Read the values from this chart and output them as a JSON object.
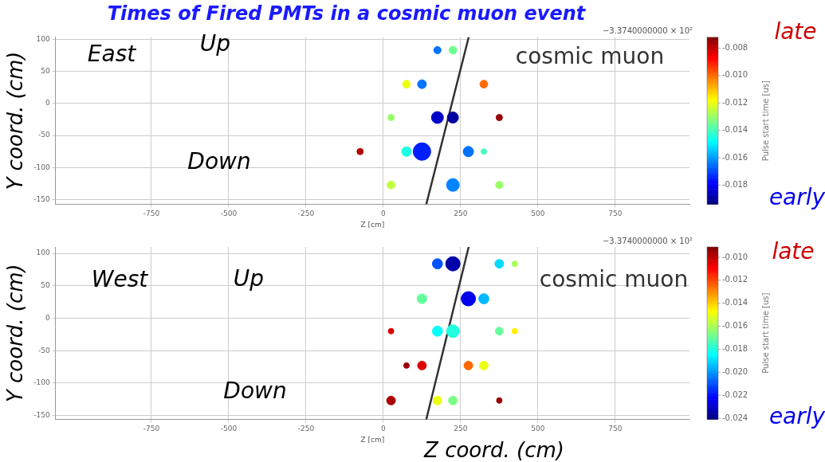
{
  "chart_data": [
    {
      "type": "bubble",
      "title": "Times of Fired PMTs in a cosmic muon event",
      "xlabel": "Z [cm]",
      "ylabel": "Y coord. (cm)",
      "clabel": "Pulse start time [us]",
      "xlim": [
        -1060,
        990
      ],
      "xticks": [
        -750,
        -500,
        -250,
        0,
        250,
        500,
        750
      ],
      "ylim": [
        -157,
        103
      ],
      "yticks": [
        -150,
        -100,
        -50,
        0,
        50,
        100
      ],
      "clim": [
        -0.0194,
        -0.0072
      ],
      "cticks": [
        {
          "value": -0.008,
          "label": "-0.008"
        },
        {
          "value": -0.01,
          "label": "-0.010"
        },
        {
          "value": -0.012,
          "label": "-0.012"
        },
        {
          "value": -0.014,
          "label": "-0.014"
        },
        {
          "value": -0.016,
          "label": "-0.016"
        },
        {
          "value": -0.018,
          "label": "-0.018"
        }
      ],
      "grid": true,
      "legend": false,
      "series": [
        {
          "type": "bubble",
          "x": [
            175,
            225,
            75,
            125,
            325,
            25,
            175,
            225,
            375,
            -75,
            75,
            125,
            275,
            325,
            25,
            225,
            375
          ],
          "values": [
            83,
            83,
            30,
            30,
            30,
            -22,
            -22,
            -22,
            -22,
            -75,
            -75,
            -75,
            -75,
            -75,
            -127,
            -127,
            -127
          ],
          "sizes": [
            0.17,
            0.2,
            0.2,
            0.25,
            0.2,
            0.13,
            0.46,
            0.4,
            0.13,
            0.13,
            0.3,
            1,
            0.35,
            0.1,
            0.2,
            0.53,
            0.17
          ],
          "cvalues": [
            -0.0165,
            -0.0135,
            -0.012,
            -0.0165,
            -0.01,
            -0.013,
            -0.0185,
            -0.019,
            -0.0075,
            -0.0078,
            -0.0145,
            -0.0175,
            -0.0165,
            -0.014,
            -0.0125,
            -0.0163,
            -0.013
          ],
          "colors": [
            "#0073ff",
            "#6fff90",
            "#ecff13",
            "#0073ff",
            "#ff6b00",
            "#98ff67",
            "#0000cb",
            "#0000a1",
            "#980000",
            "#b20000",
            "#1bffe4",
            "#001fff",
            "#0073ff",
            "#45ffba",
            "#c2ff3d",
            "#0084ff",
            "#98ff67"
          ]
        },
        {
          "type": "line",
          "name": "cosmic muon",
          "color": "#333333",
          "x": [
            139,
            276
          ],
          "values": [
            -157,
            103
          ]
        }
      ],
      "annotations": [
        "East",
        "Up",
        "Down",
        "late",
        "early",
        "−3.3740000000 × 10²"
      ]
    },
    {
      "type": "bubble",
      "xlabel": "Z [cm]",
      "ylabel": "Y coord. (cm)",
      "clabel": "Pulse start time [us]",
      "xlim": [
        -1060,
        990
      ],
      "xticks": [
        -750,
        -500,
        -250,
        0,
        250,
        500,
        750
      ],
      "ylim": [
        -156,
        110
      ],
      "yticks": [
        -150,
        -100,
        -50,
        0,
        50,
        100
      ],
      "clim": [
        -0.0241,
        -0.0091
      ],
      "cticks": [
        {
          "value": -0.01,
          "label": "-0.010"
        },
        {
          "value": -0.012,
          "label": "-0.012"
        },
        {
          "value": -0.014,
          "label": "-0.014"
        },
        {
          "value": -0.016,
          "label": "-0.016"
        },
        {
          "value": -0.018,
          "label": "-0.018"
        },
        {
          "value": -0.02,
          "label": "-0.020"
        },
        {
          "value": -0.022,
          "label": "-0.022"
        },
        {
          "value": -0.024,
          "label": "-0.024"
        }
      ],
      "grid": true,
      "legend": false,
      "series": [
        {
          "type": "bubble",
          "x": [
            175,
            225,
            375,
            425,
            125,
            275,
            325,
            25,
            175,
            225,
            375,
            425,
            75,
            125,
            275,
            325,
            25,
            175,
            225,
            375
          ],
          "values": [
            84,
            84,
            84,
            84,
            30,
            30,
            30,
            -20,
            -20,
            -20,
            -20,
            -20,
            -73,
            -73,
            -73,
            -73,
            -127,
            -127,
            -127,
            -127
          ],
          "sizes": [
            0.5,
            1,
            0.37,
            0.15,
            0.45,
            1,
            0.5,
            0.15,
            0.5,
            0.8,
            0.3,
            0.15,
            0.15,
            0.37,
            0.37,
            0.37,
            0.37,
            0.37,
            0.37,
            0.15
          ],
          "cvalues": [
            -0.021,
            -0.0235,
            -0.019,
            -0.016,
            -0.017,
            -0.0225,
            -0.0195,
            -0.0105,
            -0.0185,
            -0.018,
            -0.017,
            -0.0145,
            -0.0095,
            -0.0105,
            -0.0125,
            -0.015,
            -0.0098,
            -0.015,
            -0.0165,
            -0.0095
          ],
          "colors": [
            "#0053ff",
            "#0000a8",
            "#00dbff",
            "#a8ff57",
            "#64ff9b",
            "#0000ec",
            "#00b9ff",
            "#df0000",
            "#00fffd",
            "#20ffdf",
            "#64ff9b",
            "#fff000",
            "#9b0000",
            "#df0000",
            "#ff6800",
            "#ecff13",
            "#af0000",
            "#ecff13",
            "#79ff86",
            "#9b0000"
          ]
        },
        {
          "type": "line",
          "name": "cosmic muon",
          "color": "#333333",
          "x": [
            139,
            276
          ],
          "values": [
            -156,
            110
          ]
        }
      ],
      "annotations": [
        "West",
        "Up",
        "Down",
        "late",
        "early",
        "−3.3740000000 × 10²",
        "Z coord. (cm)"
      ]
    }
  ]
}
